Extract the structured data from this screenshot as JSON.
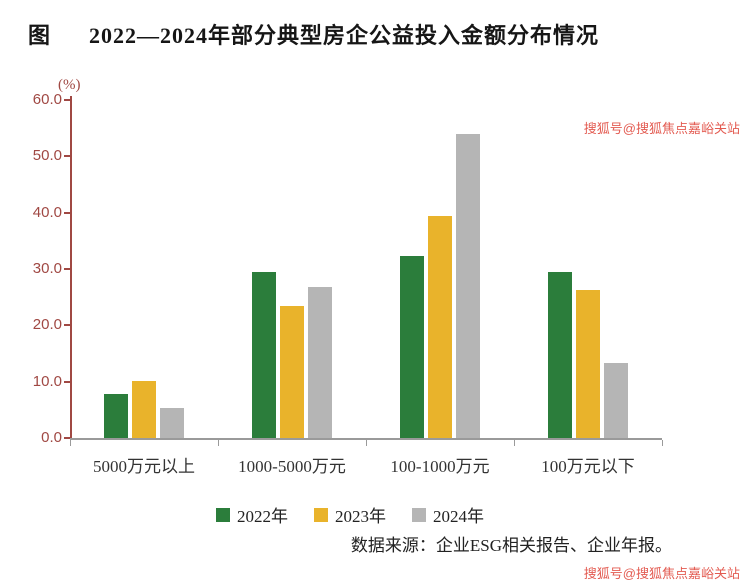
{
  "title": {
    "prefix": "图",
    "text": "2022—2024年部分典型房企公益投入金额分布情况"
  },
  "chart_data": {
    "type": "bar",
    "title": "2022—2024年部分典型房企公益投入金额分布情况",
    "unit_label": "(%)",
    "categories": [
      "5000万元以上",
      "1000-5000万元",
      "100-1000万元",
      "100万元以下"
    ],
    "series": [
      {
        "name": "2022年",
        "color": "#2B7D3B",
        "values": [
          7.8,
          29.5,
          32.3,
          29.5
        ]
      },
      {
        "name": "2023年",
        "color": "#E9B32B",
        "values": [
          10.2,
          23.5,
          39.4,
          26.2
        ]
      },
      {
        "name": "2024年",
        "color": "#B5B5B5",
        "values": [
          5.3,
          26.8,
          53.9,
          13.3
        ]
      }
    ],
    "ylim": [
      0,
      60
    ],
    "ytick_step": 10,
    "ytick_labels": [
      "0.0",
      "10.0",
      "20.0",
      "30.0",
      "40.0",
      "50.0",
      "60.0"
    ],
    "xlabel": "",
    "ylabel": "(%)",
    "grid": false,
    "legend_position": "bottom",
    "axis_color": "#A04843",
    "baseline_color": "#9a9a9a"
  },
  "source": "数据来源：企业ESG相关报告、企业年报。",
  "watermarks": {
    "top": "搜狐号@搜狐焦点嘉峪关站",
    "bottom": "搜狐号@搜狐焦点嘉峪关站"
  }
}
